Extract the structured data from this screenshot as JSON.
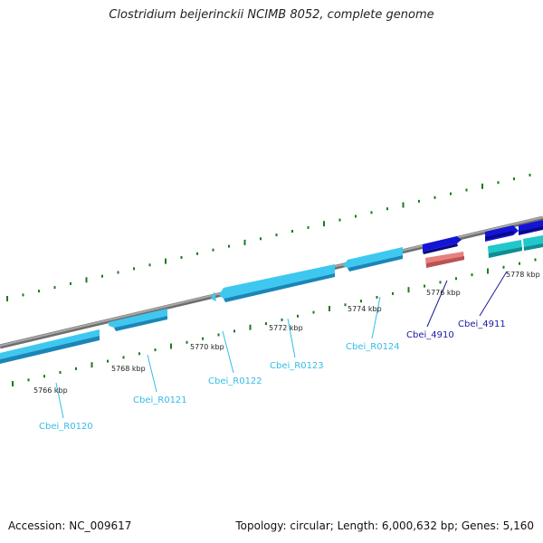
{
  "title": "Clostridium beijerinckii NCIMB 8052, complete genome",
  "footer": {
    "accession": "Accession: NC_009617",
    "summary": "Topology: circular; Length: 6,000,632 bp; Genes: 5,160"
  },
  "colors": {
    "backbone": "#8c8c8c",
    "tick": "#1e7a1e",
    "rna_gene": "#3ec8f0",
    "rna_gene_dark": "#1a86b8",
    "rna_label": "#33bde8",
    "cds_gene": "#1414d8",
    "cds_label": "#1a1aa0",
    "pink_feature": "#e88080",
    "teal_feature": "#20c8cc"
  },
  "scale": {
    "kbp_labels": [
      "5766 kbp",
      "5768 kbp",
      "5770 kbp",
      "5772 kbp",
      "5774 kbp",
      "5776 kbp",
      "5778 kbp"
    ]
  },
  "genes": [
    {
      "label": "Cbei_R0120",
      "type": "rna"
    },
    {
      "label": "Cbei_R0121",
      "type": "rna"
    },
    {
      "label": "Cbei_R0122",
      "type": "rna"
    },
    {
      "label": "Cbei_R0123",
      "type": "rna"
    },
    {
      "label": "Cbei_R0124",
      "type": "rna"
    },
    {
      "label": "Cbei_4910",
      "type": "cds"
    },
    {
      "label": "Cbei_4911",
      "type": "cds"
    }
  ]
}
